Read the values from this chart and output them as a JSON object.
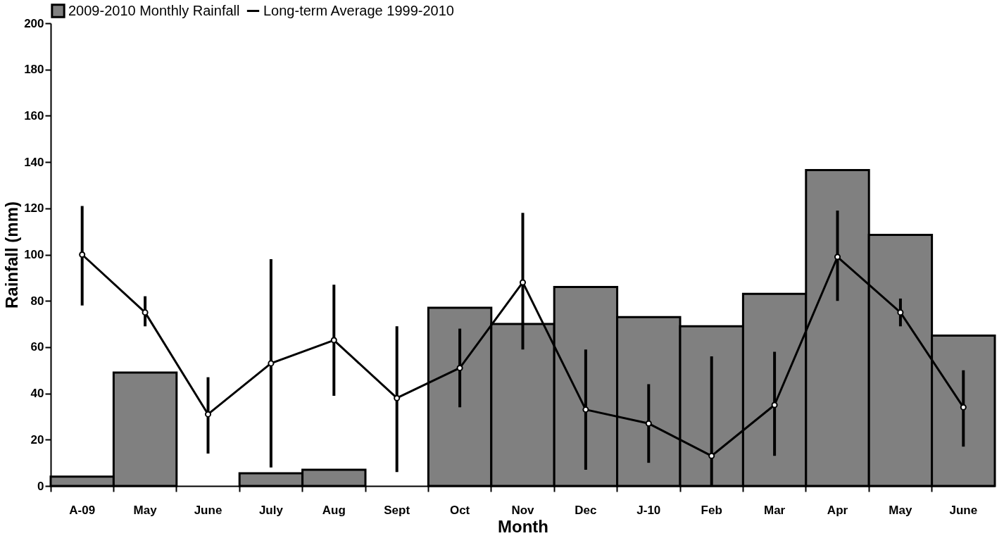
{
  "chart_data": {
    "type": "bar",
    "xlabel": "Month",
    "ylabel": "Rainfall (mm)",
    "categories": [
      "A-09",
      "May",
      "June",
      "July",
      "Aug",
      "Sept",
      "Oct",
      "Nov",
      "Dec",
      "J-10",
      "Feb",
      "Mar",
      "Apr",
      "May",
      "June"
    ],
    "series": [
      {
        "name": "2009-2010 Monthly Rainfall",
        "color": "#808080",
        "values": [
          4,
          49,
          null,
          5.5,
          7,
          null,
          77,
          70,
          86,
          73,
          69,
          83,
          136.5,
          108.5,
          65
        ]
      },
      {
        "name": "Long-term Average 1999-2010",
        "type": "line",
        "color": "#000000",
        "marker": "circle",
        "values": [
          100,
          75,
          31,
          53,
          63,
          38,
          51,
          88,
          33,
          27,
          13,
          35,
          99,
          75,
          34
        ],
        "errors": [
          [
            78,
            121
          ],
          [
            69,
            82
          ],
          [
            14,
            47
          ],
          [
            8,
            98
          ],
          [
            39,
            87
          ],
          [
            6,
            69
          ],
          [
            34,
            68
          ],
          [
            59,
            118
          ],
          [
            7,
            59
          ],
          [
            10,
            44
          ],
          [
            0,
            56
          ],
          [
            13,
            58
          ],
          [
            80,
            119
          ],
          [
            69,
            81
          ],
          [
            17,
            50
          ]
        ]
      }
    ],
    "ylim": [
      0,
      200
    ],
    "yticks": [
      0,
      20,
      40,
      60,
      80,
      100,
      120,
      140,
      160,
      180,
      200
    ],
    "grid": false,
    "legend": "top"
  }
}
